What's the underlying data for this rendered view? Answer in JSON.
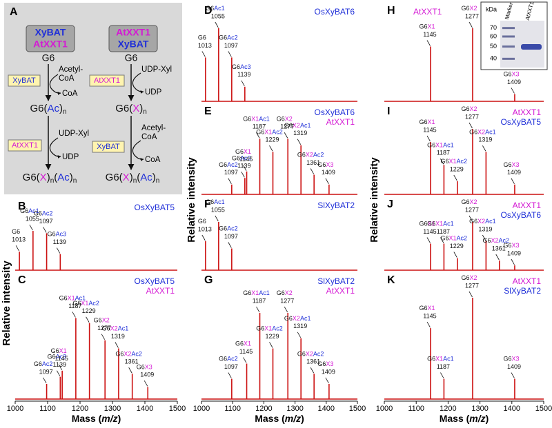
{
  "diagram": {
    "label": "A",
    "left": {
      "header": [
        "XyBAT",
        "AtXXT1"
      ],
      "start": "G6",
      "step1": {
        "enzyme": "XyBAT",
        "donor": [
          "Acetyl-",
          "CoA"
        ],
        "product": "CoA"
      },
      "mid": [
        "G6(",
        "Ac",
        ")",
        "n"
      ],
      "step2": {
        "enzyme": "AtXXT1",
        "donor": [
          "UDP-Xyl"
        ],
        "product": "UDP"
      },
      "end": [
        "G6(",
        "X",
        ")",
        "n",
        "(",
        "Ac",
        ")",
        "n"
      ]
    },
    "right": {
      "header": [
        "AtXXT1",
        "XyBAT"
      ],
      "start": "G6",
      "step1": {
        "enzyme": "AtXXT1",
        "donor": [
          "UDP-Xyl"
        ],
        "product": "UDP"
      },
      "mid": [
        "G6(",
        "X",
        ")",
        "n"
      ],
      "step2": {
        "enzyme": "XyBAT",
        "donor": [
          "Acetyl-",
          "CoA"
        ],
        "product": "CoA"
      },
      "end": [
        "G6(",
        "X",
        ")",
        "n",
        "(",
        "Ac",
        ")",
        "n"
      ]
    }
  },
  "label_colors": {
    "k": "#111111",
    "x": "#d41ad4",
    "a": "#1f2fd8"
  },
  "chart_data": [
    {
      "type": "spectrum",
      "panel": "B",
      "color": "#cc1111",
      "ylabel": "Relative intensity",
      "xlim": [
        1000,
        1500
      ],
      "ylim": [
        0,
        100
      ],
      "samples": [
        {
          "name": "OsXyBAT5",
          "color": "#1f2fd8"
        }
      ],
      "x": [
        1013,
        1055,
        1097,
        1139
      ],
      "values": [
        40,
        85,
        80,
        35
      ],
      "peak_labels": [
        [
          [
            "G6",
            "k"
          ]
        ],
        [
          [
            "G6",
            "k"
          ],
          [
            "Ac1",
            "a"
          ]
        ],
        [
          [
            "G6",
            "k"
          ],
          [
            "Ac2",
            "a"
          ]
        ],
        [
          [
            "G6",
            "k"
          ],
          [
            "Ac3",
            "a"
          ]
        ]
      ]
    },
    {
      "type": "spectrum",
      "panel": "C",
      "color": "#cc1111",
      "xlim": [
        1000,
        1500
      ],
      "ylim": [
        0,
        100
      ],
      "xticks": [
        1000,
        1100,
        1200,
        1300,
        1400,
        1500
      ],
      "xlabel": [
        "Mass (",
        "m/z",
        ")"
      ],
      "samples": [
        {
          "name": "OsXyBAT5",
          "color": "#1f2fd8"
        },
        {
          "name": "AtXXT1",
          "color": "#d41ad4"
        }
      ],
      "x": [
        1097,
        1139,
        1145,
        1187,
        1229,
        1277,
        1319,
        1361,
        1409
      ],
      "values": [
        15,
        22,
        28,
        80,
        75,
        58,
        50,
        25,
        12
      ],
      "peak_labels": [
        [
          [
            "G6",
            "k"
          ],
          [
            "Ac2",
            "a"
          ]
        ],
        [
          [
            "G6",
            "k"
          ],
          [
            "Ac3",
            "a"
          ]
        ],
        [
          [
            "G6",
            "k"
          ],
          [
            "X1",
            "x"
          ]
        ],
        [
          [
            "G6",
            "k"
          ],
          [
            "X1",
            "x"
          ],
          [
            "Ac1",
            "a"
          ]
        ],
        [
          [
            "G6",
            "k"
          ],
          [
            "X1",
            "x"
          ],
          [
            "Ac2",
            "a"
          ]
        ],
        [
          [
            "G6",
            "k"
          ],
          [
            "X2",
            "x"
          ]
        ],
        [
          [
            "G6",
            "k"
          ],
          [
            "X2",
            "x"
          ],
          [
            "Ac1",
            "a"
          ]
        ],
        [
          [
            "G6",
            "k"
          ],
          [
            "X2",
            "x"
          ],
          [
            "Ac2",
            "a"
          ]
        ],
        [
          [
            "G6",
            "k"
          ],
          [
            "X3",
            "x"
          ]
        ]
      ]
    },
    {
      "type": "spectrum",
      "panel": "D",
      "color": "#cc1111",
      "xlim": [
        1000,
        1500
      ],
      "ylim": [
        0,
        100
      ],
      "samples": [
        {
          "name": "OsXyBAT6",
          "color": "#1f2fd8"
        }
      ],
      "x": [
        1013,
        1055,
        1097,
        1139
      ],
      "values": [
        60,
        100,
        60,
        20
      ],
      "peak_labels": [
        [
          [
            "G6",
            "k"
          ]
        ],
        [
          [
            "G6",
            "k"
          ],
          [
            "Ac1",
            "a"
          ]
        ],
        [
          [
            "G6",
            "k"
          ],
          [
            "Ac2",
            "a"
          ]
        ],
        [
          [
            "G6",
            "k"
          ],
          [
            "Ac3",
            "a"
          ]
        ]
      ]
    },
    {
      "type": "spectrum",
      "panel": "E",
      "color": "#cc1111",
      "ylabel": "Relative intensity",
      "xlim": [
        1000,
        1500
      ],
      "ylim": [
        0,
        100
      ],
      "samples": [
        {
          "name": "OsXyBAT6",
          "color": "#1f2fd8"
        },
        {
          "name": "AtXXT1",
          "color": "#d41ad4"
        }
      ],
      "x": [
        1097,
        1139,
        1145,
        1187,
        1229,
        1277,
        1319,
        1361,
        1409
      ],
      "values": [
        15,
        25,
        35,
        85,
        65,
        85,
        75,
        30,
        15
      ],
      "peak_labels": [
        [
          [
            "G6",
            "k"
          ],
          [
            "Ac2",
            "a"
          ]
        ],
        [
          [
            "G6",
            "k"
          ],
          [
            "Ac3",
            "a"
          ]
        ],
        [
          [
            "G6",
            "k"
          ],
          [
            "X1",
            "x"
          ]
        ],
        [
          [
            "G6",
            "k"
          ],
          [
            "X1",
            "x"
          ],
          [
            "Ac1",
            "a"
          ]
        ],
        [
          [
            "G6",
            "k"
          ],
          [
            "X1",
            "x"
          ],
          [
            "Ac2",
            "a"
          ]
        ],
        [
          [
            "G6",
            "k"
          ],
          [
            "X2",
            "x"
          ]
        ],
        [
          [
            "G6",
            "k"
          ],
          [
            "X2",
            "x"
          ],
          [
            "Ac1",
            "a"
          ]
        ],
        [
          [
            "G6",
            "k"
          ],
          [
            "X2",
            "x"
          ],
          [
            "Ac2",
            "a"
          ]
        ],
        [
          [
            "G6",
            "k"
          ],
          [
            "X3",
            "x"
          ]
        ]
      ]
    },
    {
      "type": "spectrum",
      "panel": "F",
      "color": "#cc1111",
      "xlim": [
        1000,
        1500
      ],
      "ylim": [
        0,
        100
      ],
      "samples": [
        {
          "name": "SlXyBAT2",
          "color": "#1f2fd8"
        }
      ],
      "x": [
        1013,
        1055,
        1097
      ],
      "values": [
        60,
        100,
        45
      ],
      "peak_labels": [
        [
          [
            "G6",
            "k"
          ]
        ],
        [
          [
            "G6",
            "k"
          ],
          [
            "Ac1",
            "a"
          ]
        ],
        [
          [
            "G6",
            "k"
          ],
          [
            "Ac2",
            "a"
          ]
        ]
      ]
    },
    {
      "type": "spectrum",
      "panel": "G",
      "color": "#cc1111",
      "xlim": [
        1000,
        1500
      ],
      "ylim": [
        0,
        100
      ],
      "xticks": [
        1000,
        1100,
        1200,
        1300,
        1400,
        1500
      ],
      "xlabel": [
        "Mass (",
        "m/z",
        ")"
      ],
      "samples": [
        {
          "name": "SlXyBAT2",
          "color": "#1f2fd8"
        },
        {
          "name": "AtXXT1",
          "color": "#d41ad4"
        }
      ],
      "x": [
        1097,
        1145,
        1187,
        1229,
        1277,
        1319,
        1361,
        1409
      ],
      "values": [
        20,
        35,
        85,
        50,
        85,
        60,
        25,
        15
      ],
      "peak_labels": [
        [
          [
            "G6",
            "k"
          ],
          [
            "Ac2",
            "a"
          ]
        ],
        [
          [
            "G6",
            "k"
          ],
          [
            "X1",
            "x"
          ]
        ],
        [
          [
            "G6",
            "k"
          ],
          [
            "X1",
            "x"
          ],
          [
            "Ac1",
            "a"
          ]
        ],
        [
          [
            "G6",
            "k"
          ],
          [
            "X1",
            "x"
          ],
          [
            "Ac2",
            "a"
          ]
        ],
        [
          [
            "G6",
            "k"
          ],
          [
            "X2",
            "x"
          ]
        ],
        [
          [
            "G6",
            "k"
          ],
          [
            "X2",
            "x"
          ],
          [
            "Ac1",
            "a"
          ]
        ],
        [
          [
            "G6",
            "k"
          ],
          [
            "X2",
            "x"
          ],
          [
            "Ac2",
            "a"
          ]
        ],
        [
          [
            "G6",
            "k"
          ],
          [
            "X3",
            "x"
          ]
        ]
      ]
    },
    {
      "type": "spectrum",
      "panel": "H",
      "color": "#cc1111",
      "xlim": [
        1000,
        1500
      ],
      "ylim": [
        0,
        100
      ],
      "samples": [
        {
          "name": "AtXXT1",
          "color": "#d41ad4"
        }
      ],
      "x": [
        1145,
        1277,
        1409
      ],
      "values": [
        75,
        100,
        10
      ],
      "peak_labels": [
        [
          [
            "G6",
            "k"
          ],
          [
            "X1",
            "x"
          ]
        ],
        [
          [
            "G6",
            "k"
          ],
          [
            "X2",
            "x"
          ]
        ],
        [
          [
            "G6",
            "k"
          ],
          [
            "X3",
            "x"
          ]
        ]
      ],
      "inset": {
        "unit": "kDa",
        "lanes": [
          "Marker",
          "AtXXT1"
        ],
        "markers": [
          70,
          60,
          50,
          40
        ]
      }
    },
    {
      "type": "spectrum",
      "panel": "I",
      "color": "#cc1111",
      "ylabel": "Relative intensity",
      "xlim": [
        1000,
        1500
      ],
      "ylim": [
        0,
        100
      ],
      "samples": [
        {
          "name": "AtXXT1",
          "color": "#d41ad4"
        },
        {
          "name": "OsXyBAT5",
          "color": "#1f2fd8"
        }
      ],
      "x": [
        1145,
        1187,
        1229,
        1277,
        1319,
        1409
      ],
      "values": [
        80,
        45,
        20,
        100,
        65,
        15
      ],
      "peak_labels": [
        [
          [
            "G6",
            "k"
          ],
          [
            "X1",
            "x"
          ]
        ],
        [
          [
            "G6",
            "k"
          ],
          [
            "X1",
            "x"
          ],
          [
            "Ac1",
            "a"
          ]
        ],
        [
          [
            "G6",
            "k"
          ],
          [
            "X1",
            "x"
          ],
          [
            "Ac2",
            "a"
          ]
        ],
        [
          [
            "G6",
            "k"
          ],
          [
            "X2",
            "x"
          ]
        ],
        [
          [
            "G6",
            "k"
          ],
          [
            "X2",
            "x"
          ],
          [
            "Ac1",
            "a"
          ]
        ],
        [
          [
            "G6",
            "k"
          ],
          [
            "X3",
            "x"
          ]
        ]
      ]
    },
    {
      "type": "spectrum",
      "panel": "J",
      "color": "#cc1111",
      "xlim": [
        1000,
        1500
      ],
      "ylim": [
        0,
        100
      ],
      "samples": [
        {
          "name": "AtXXT1",
          "color": "#d41ad4"
        },
        {
          "name": "OsXyBAT6",
          "color": "#1f2fd8"
        }
      ],
      "x": [
        1145,
        1187,
        1229,
        1277,
        1319,
        1361,
        1409
      ],
      "values": [
        55,
        55,
        25,
        100,
        60,
        20,
        10
      ],
      "peak_labels": [
        [
          [
            "G6",
            "k"
          ],
          [
            "X1",
            "x"
          ]
        ],
        [
          [
            "G6",
            "k"
          ],
          [
            "X1",
            "x"
          ],
          [
            "Ac1",
            "a"
          ]
        ],
        [
          [
            "G6",
            "k"
          ],
          [
            "X1",
            "x"
          ],
          [
            "Ac2",
            "a"
          ]
        ],
        [
          [
            "G6",
            "k"
          ],
          [
            "X2",
            "x"
          ]
        ],
        [
          [
            "G6",
            "k"
          ],
          [
            "X2",
            "x"
          ],
          [
            "Ac1",
            "a"
          ]
        ],
        [
          [
            "G6",
            "k"
          ],
          [
            "X2",
            "x"
          ],
          [
            "Ac2",
            "a"
          ]
        ],
        [
          [
            "G6",
            "k"
          ],
          [
            "X3",
            "x"
          ]
        ]
      ]
    },
    {
      "type": "spectrum",
      "panel": "K",
      "color": "#cc1111",
      "xlim": [
        1000,
        1500
      ],
      "ylim": [
        0,
        100
      ],
      "xticks": [
        1000,
        1100,
        1200,
        1300,
        1400,
        1500
      ],
      "xlabel": [
        "Mass (",
        "m/z",
        ")"
      ],
      "samples": [
        {
          "name": "AtXXT1",
          "color": "#d41ad4"
        },
        {
          "name": "SlXyBAT2",
          "color": "#1f2fd8"
        }
      ],
      "x": [
        1145,
        1187,
        1277,
        1409
      ],
      "values": [
        70,
        20,
        100,
        20
      ],
      "peak_labels": [
        [
          [
            "G6",
            "k"
          ],
          [
            "X1",
            "x"
          ]
        ],
        [
          [
            "G6",
            "k"
          ],
          [
            "X1",
            "x"
          ],
          [
            "Ac1",
            "a"
          ]
        ],
        [
          [
            "G6",
            "k"
          ],
          [
            "X2",
            "x"
          ]
        ],
        [
          [
            "G6",
            "k"
          ],
          [
            "X3",
            "x"
          ]
        ]
      ]
    }
  ]
}
